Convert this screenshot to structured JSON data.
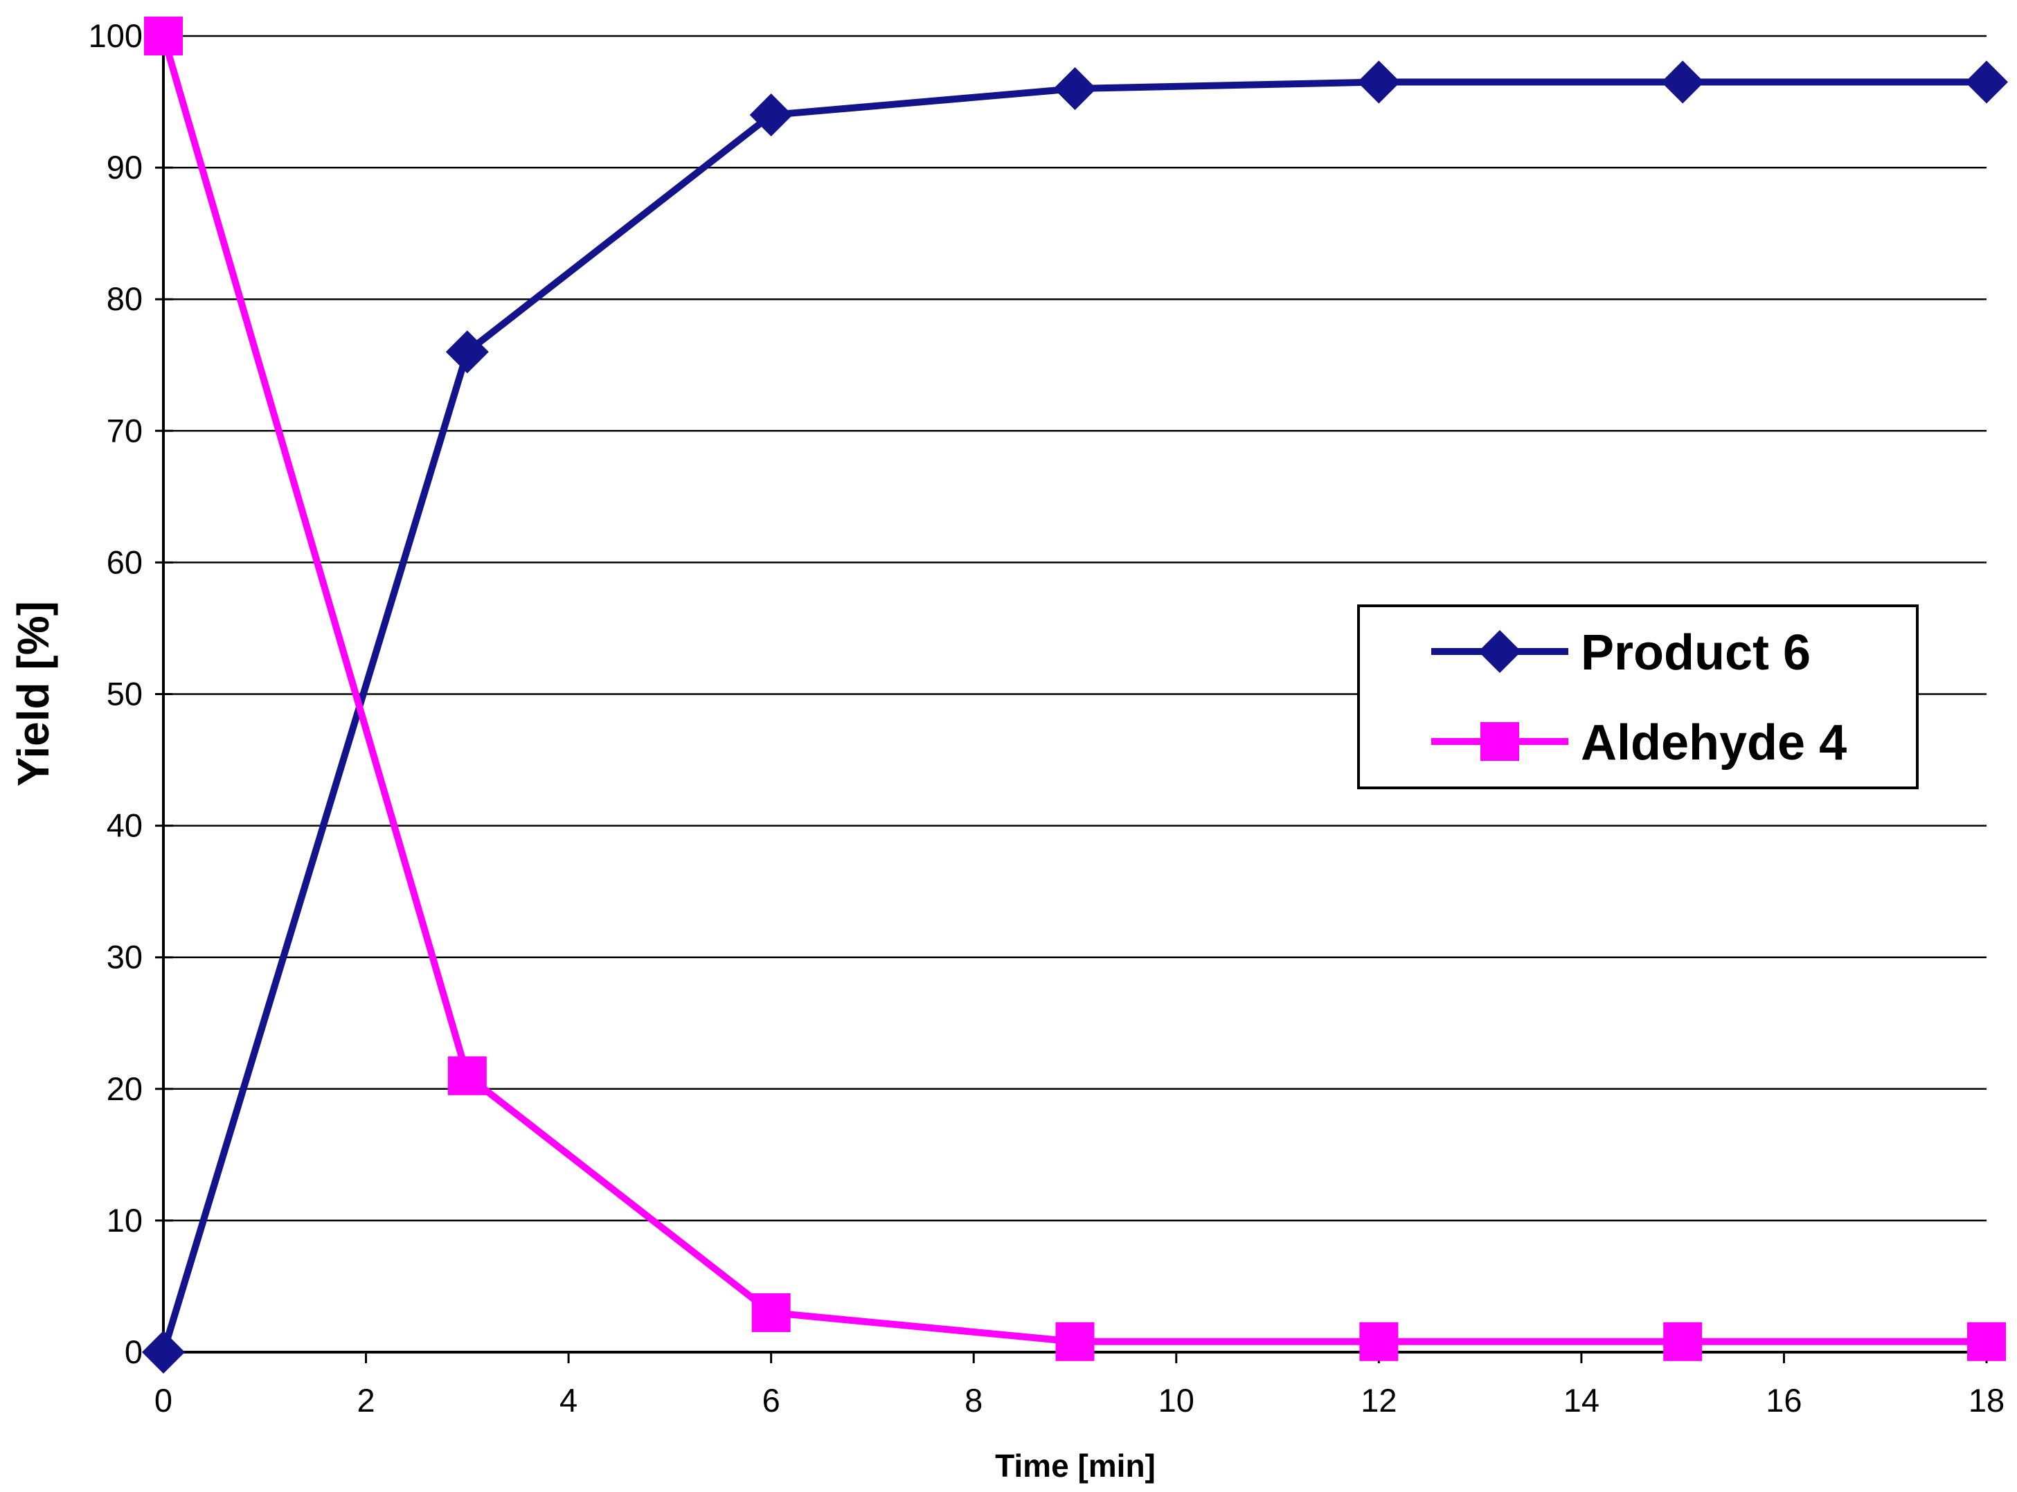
{
  "chart_data": {
    "type": "line",
    "title": "",
    "xlabel": "Time [min]",
    "ylabel": "Yield [%]",
    "x": [
      0,
      3,
      6,
      9,
      12,
      15,
      18
    ],
    "series": [
      {
        "name": "Product 6",
        "color": "#13138B",
        "marker": "diamond",
        "values": [
          0,
          76,
          94,
          96,
          96.5,
          96.5,
          96.5
        ]
      },
      {
        "name": "Aldehyde 4",
        "color": "#FF00FF",
        "marker": "square",
        "values": [
          100,
          21,
          3,
          0.8,
          0.8,
          0.8,
          0.8
        ]
      }
    ],
    "xlim": [
      0,
      18
    ],
    "ylim": [
      0,
      100
    ],
    "x_ticks": [
      0,
      2,
      4,
      6,
      8,
      10,
      12,
      14,
      16,
      18
    ],
    "y_ticks": [
      0,
      10,
      20,
      30,
      40,
      50,
      60,
      70,
      80,
      90,
      100
    ],
    "grid": "horizontal",
    "gridline_color": "#000000",
    "axis_color": "#000000",
    "background": "#FFFFFF",
    "legend_position": "middle-right"
  }
}
